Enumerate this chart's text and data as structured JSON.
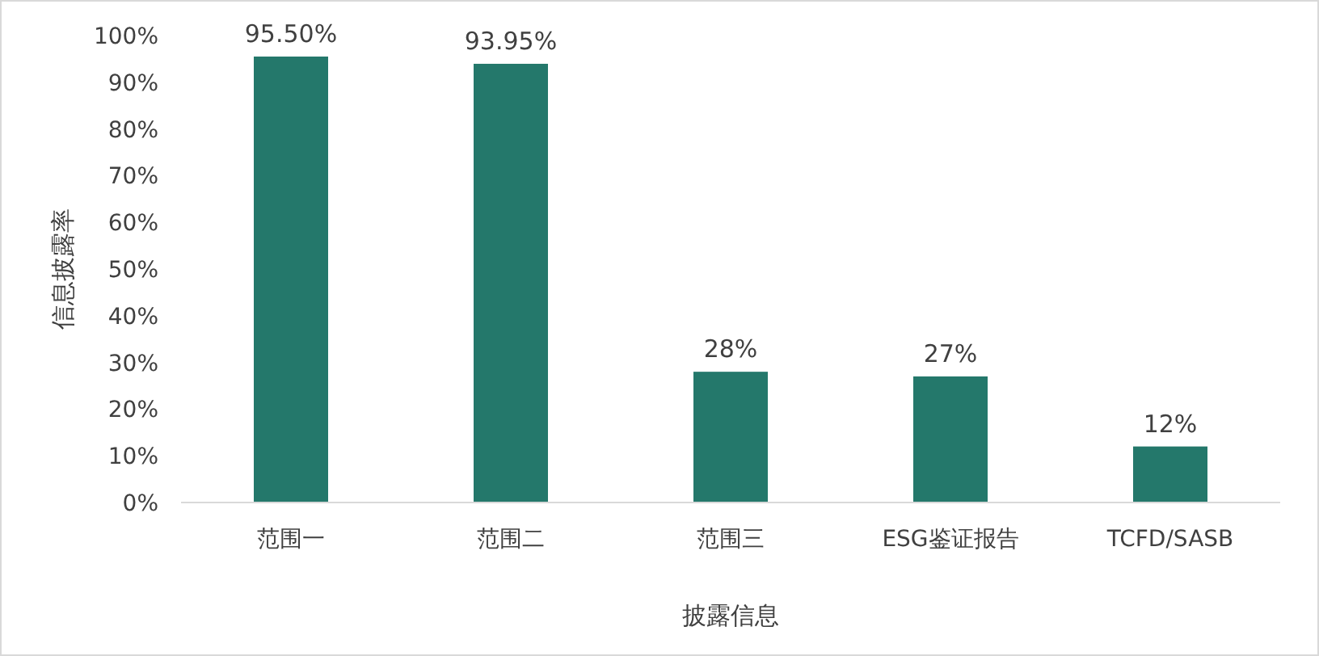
{
  "chart_data": {
    "type": "bar",
    "xlabel": "披露信息",
    "ylabel": "信息披露率",
    "categories": [
      "范围一",
      "范围二",
      "范围三",
      "ESG鉴证报告",
      "TCFD/SASB"
    ],
    "values": [
      95.5,
      93.95,
      28,
      27,
      12
    ],
    "value_labels": [
      "95.50%",
      "93.95%",
      "28%",
      "27%",
      "12%"
    ],
    "color": "#24786b",
    "ylim": [
      0,
      100
    ],
    "yticks": [
      {
        "value": 0,
        "label": "0%"
      },
      {
        "value": 10,
        "label": "10%"
      },
      {
        "value": 20,
        "label": "20%"
      },
      {
        "value": 30,
        "label": "30%"
      },
      {
        "value": 40,
        "label": "40%"
      },
      {
        "value": 50,
        "label": "50%"
      },
      {
        "value": 60,
        "label": "60%"
      },
      {
        "value": 70,
        "label": "70%"
      },
      {
        "value": 80,
        "label": "80%"
      },
      {
        "value": 90,
        "label": "90%"
      },
      {
        "value": 100,
        "label": "100%"
      }
    ]
  }
}
